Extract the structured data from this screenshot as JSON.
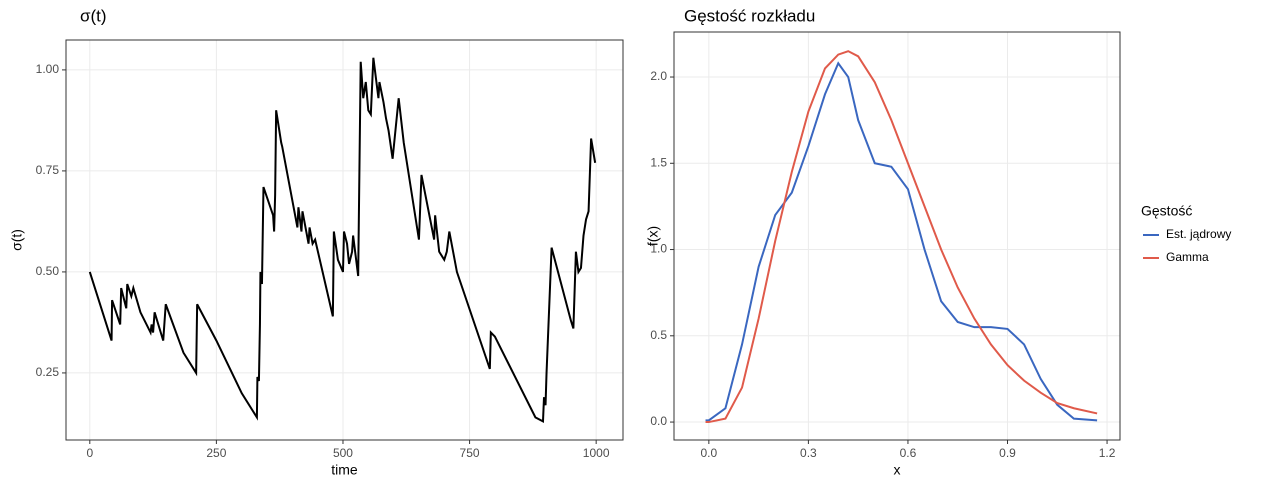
{
  "chart_data": [
    {
      "type": "line",
      "title": "σ(t)",
      "x_label": "time",
      "y_label": "σ(t)",
      "color": "#000000",
      "grid": true,
      "xlim": [
        -47,
        1053
      ],
      "ylim": [
        0.084,
        1.074
      ],
      "xticks": [
        0,
        250,
        500,
        750,
        1000
      ],
      "yticks": [
        0.25,
        {
          "value": 0.5,
          "label": "0.50"
        },
        0.75,
        {
          "value": 1,
          "label": "1.00"
        }
      ],
      "x": [
        0,
        43,
        44,
        60,
        62,
        72,
        74,
        82,
        86,
        100,
        120,
        122,
        125,
        128,
        145,
        150,
        185,
        190,
        210,
        212,
        250,
        300,
        330,
        331,
        334,
        336,
        337,
        340,
        343,
        362,
        364,
        366,
        368,
        378,
        380,
        410,
        412,
        418,
        420,
        432,
        434,
        440,
        445,
        480,
        482,
        490,
        500,
        502,
        508,
        512,
        518,
        520,
        530,
        535,
        540,
        545,
        550,
        555,
        560,
        570,
        572,
        580,
        585,
        590,
        598,
        610,
        620,
        650,
        655,
        680,
        682,
        690,
        700,
        705,
        710,
        725,
        790,
        792,
        800,
        880,
        895,
        897,
        900,
        902,
        912,
        950,
        955,
        960,
        965,
        970,
        975,
        980,
        985,
        990,
        998
      ],
      "values": [
        0.5,
        0.33,
        0.43,
        0.37,
        0.46,
        0.41,
        0.47,
        0.44,
        0.46,
        0.4,
        0.35,
        0.37,
        0.35,
        0.4,
        0.33,
        0.42,
        0.3,
        0.29,
        0.25,
        0.42,
        0.33,
        0.2,
        0.14,
        0.24,
        0.23,
        0.37,
        0.5,
        0.47,
        0.71,
        0.64,
        0.6,
        0.69,
        0.9,
        0.82,
        0.81,
        0.61,
        0.66,
        0.6,
        0.65,
        0.57,
        0.61,
        0.57,
        0.58,
        0.39,
        0.6,
        0.53,
        0.5,
        0.6,
        0.57,
        0.52,
        0.55,
        0.59,
        0.49,
        1.02,
        0.93,
        0.97,
        0.9,
        0.89,
        1.03,
        0.93,
        0.97,
        0.92,
        0.88,
        0.85,
        0.78,
        0.93,
        0.82,
        0.58,
        0.74,
        0.58,
        0.64,
        0.55,
        0.53,
        0.55,
        0.6,
        0.5,
        0.26,
        0.35,
        0.34,
        0.14,
        0.13,
        0.19,
        0.17,
        0.25,
        0.56,
        0.38,
        0.36,
        0.55,
        0.5,
        0.51,
        0.59,
        0.63,
        0.65,
        0.83,
        0.77
      ]
    },
    {
      "type": "line",
      "title": "Gęstość rozkładu",
      "x_label": "x",
      "y_label": "f(x)",
      "legend_title": "Gęstość",
      "legend": "right",
      "grid": true,
      "xlim": [
        -0.105,
        1.239
      ],
      "ylim": [
        -0.104,
        2.261
      ],
      "xticks": [
        {
          "value": 0,
          "label": "0.0"
        },
        0.3,
        0.6,
        0.9,
        1.2
      ],
      "yticks": [
        {
          "value": 0,
          "label": "0.0"
        },
        0.5,
        {
          "value": 1,
          "label": "1.0"
        },
        1.5,
        {
          "value": 2,
          "label": "2.0"
        }
      ],
      "x": [
        -0.01,
        0,
        0.05,
        0.1,
        0.15,
        0.2,
        0.25,
        0.3,
        0.35,
        0.39,
        0.42,
        0.45,
        0.5,
        0.55,
        0.6,
        0.65,
        0.7,
        0.75,
        0.8,
        0.85,
        0.9,
        0.95,
        1.0,
        1.05,
        1.1,
        1.17
      ],
      "series": [
        {
          "name": "Est. jądrowy",
          "color": "#3a67c0",
          "values": [
            0.01,
            0.01,
            0.08,
            0.45,
            0.9,
            1.2,
            1.33,
            1.6,
            1.9,
            2.08,
            2.0,
            1.75,
            1.5,
            1.48,
            1.35,
            1.0,
            0.7,
            0.58,
            0.55,
            0.55,
            0.54,
            0.45,
            0.25,
            0.1,
            0.02,
            0.01
          ]
        },
        {
          "name": "Gamma",
          "color": "#e05a4a",
          "values": [
            0,
            0,
            0.02,
            0.2,
            0.6,
            1.05,
            1.45,
            1.8,
            2.05,
            2.13,
            2.15,
            2.12,
            1.97,
            1.75,
            1.5,
            1.25,
            1.0,
            0.78,
            0.6,
            0.45,
            0.33,
            0.24,
            0.17,
            0.11,
            0.08,
            0.05
          ]
        }
      ]
    }
  ]
}
